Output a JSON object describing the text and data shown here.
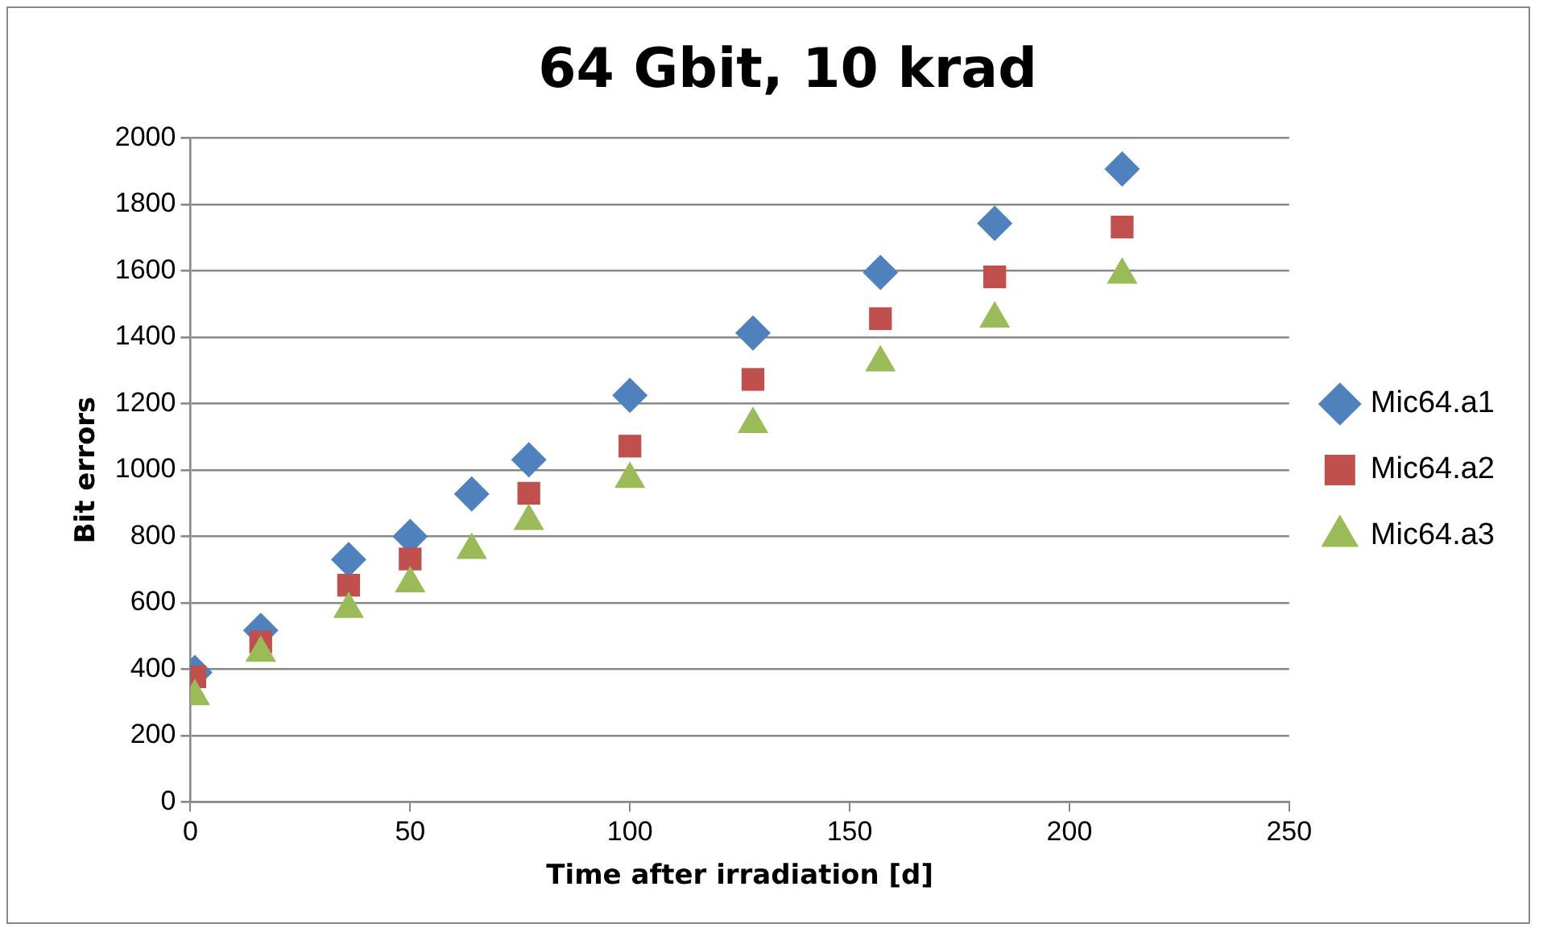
{
  "chart_data": {
    "type": "scatter",
    "title": "64 Gbit, 10 krad",
    "xlabel": "Time after irradiation [d]",
    "ylabel": "Bit errors",
    "x": [
      1,
      16,
      36,
      50,
      64,
      77,
      100,
      128,
      157,
      183,
      212
    ],
    "series": [
      {
        "name": "Mic64.a1",
        "color": "#4f81bd",
        "marker": "diamond",
        "values": [
          390,
          517,
          730,
          800,
          928,
          1031,
          1225,
          1413,
          1595,
          1743,
          1907
        ]
      },
      {
        "name": "Mic64.a2",
        "color": "#c0504d",
        "marker": "square",
        "values": [
          377,
          482,
          653,
          732,
          null,
          930,
          1072,
          1273,
          1456,
          1582,
          1732
        ]
      },
      {
        "name": "Mic64.a3",
        "color": "#9bbb59",
        "marker": "triangle",
        "values": [
          318,
          449,
          581,
          658,
          759,
          846,
          973,
          1138,
          1324,
          1456,
          1588
        ]
      }
    ],
    "xlim": [
      0,
      250
    ],
    "xticks": [
      0,
      50,
      100,
      150,
      200,
      250
    ],
    "ylim": [
      0,
      2000
    ],
    "yticks": [
      0,
      200,
      400,
      600,
      800,
      1000,
      1200,
      1400,
      1600,
      1800,
      2000
    ],
    "grid": "y",
    "legend": "right"
  }
}
